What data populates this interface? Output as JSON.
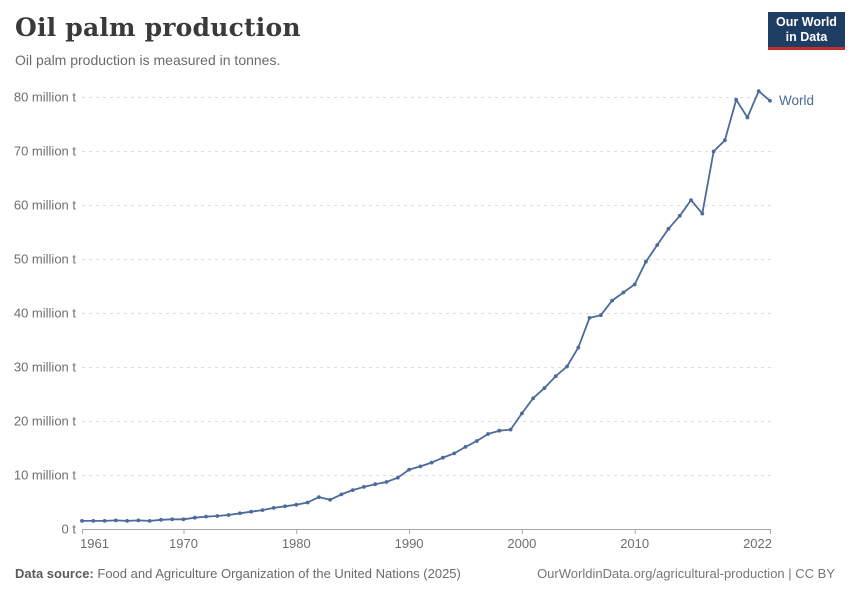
{
  "header": {
    "title": "Oil palm production",
    "subtitle": "Oil palm production is measured in tonnes."
  },
  "logo": {
    "line1": "Our World",
    "line2": "in Data",
    "bg_color": "#1d3d63",
    "accent_color": "#c2302c"
  },
  "chart_data": {
    "type": "line",
    "title": "Oil palm production",
    "ylabel": "",
    "xlabel": "",
    "unit": "tonnes",
    "values_unit": "million tonnes",
    "grid": "horizontal-dashed",
    "legend_position": "end-of-line",
    "xlim": [
      1961,
      2022
    ],
    "ylim": [
      0,
      80
    ],
    "y_ticks": [
      {
        "value": 0,
        "label": "0 t"
      },
      {
        "value": 10,
        "label": "10 million t"
      },
      {
        "value": 20,
        "label": "20 million t"
      },
      {
        "value": 30,
        "label": "30 million t"
      },
      {
        "value": 40,
        "label": "40 million t"
      },
      {
        "value": 50,
        "label": "50 million t"
      },
      {
        "value": 60,
        "label": "60 million t"
      },
      {
        "value": 70,
        "label": "70 million t"
      },
      {
        "value": 80,
        "label": "80 million t"
      }
    ],
    "x_ticks": [
      {
        "year": 1961,
        "label": "1961",
        "align": "start"
      },
      {
        "year": 1970,
        "label": "1970",
        "align": "middle"
      },
      {
        "year": 1980,
        "label": "1980",
        "align": "middle"
      },
      {
        "year": 1990,
        "label": "1990",
        "align": "middle"
      },
      {
        "year": 2000,
        "label": "2000",
        "align": "middle"
      },
      {
        "year": 2010,
        "label": "2010",
        "align": "middle"
      },
      {
        "year": 2022,
        "label": "2022",
        "align": "end"
      }
    ],
    "series": [
      {
        "name": "World",
        "color": "#4C6A9C",
        "years": [
          1961,
          1962,
          1963,
          1964,
          1965,
          1966,
          1967,
          1968,
          1969,
          1970,
          1971,
          1972,
          1973,
          1974,
          1975,
          1976,
          1977,
          1978,
          1979,
          1980,
          1981,
          1982,
          1983,
          1984,
          1985,
          1986,
          1987,
          1988,
          1989,
          1990,
          1991,
          1992,
          1993,
          1994,
          1995,
          1996,
          1997,
          1998,
          1999,
          2000,
          2001,
          2002,
          2003,
          2004,
          2005,
          2006,
          2007,
          2008,
          2009,
          2010,
          2011,
          2012,
          2013,
          2014,
          2015,
          2016,
          2017,
          2018,
          2019,
          2020,
          2021,
          2022
        ],
        "values_million_t": [
          1.5,
          1.5,
          1.5,
          1.6,
          1.5,
          1.6,
          1.5,
          1.7,
          1.8,
          1.8,
          2.1,
          2.3,
          2.4,
          2.6,
          2.9,
          3.2,
          3.5,
          3.9,
          4.2,
          4.5,
          4.9,
          5.9,
          5.4,
          6.4,
          7.2,
          7.8,
          8.3,
          8.7,
          9.5,
          11.0,
          11.6,
          12.3,
          13.2,
          14.0,
          15.2,
          16.3,
          17.6,
          18.2,
          18.4,
          21.4,
          24.2,
          26.1,
          28.3,
          30.1,
          33.6,
          39.1,
          39.6,
          42.3,
          43.8,
          45.3,
          49.5,
          52.6,
          55.6,
          58.0,
          60.9,
          58.4,
          69.9,
          72.0,
          79.5,
          76.2,
          81.1,
          79.3
        ]
      }
    ]
  },
  "footer": {
    "source_label": "Data source:",
    "source_text": "Food and Agriculture Organization of the United Nations (2025)",
    "link_text": "OurWorldinData.org/agricultural-production | CC BY"
  }
}
